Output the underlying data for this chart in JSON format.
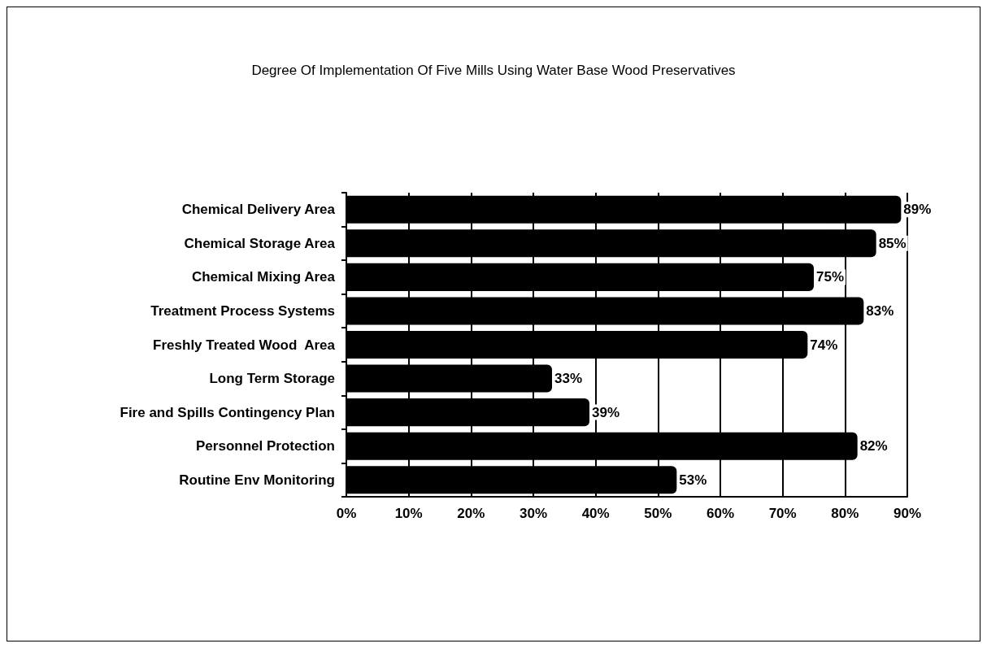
{
  "chart_data": {
    "type": "bar",
    "orientation": "horizontal",
    "title": "Degree Of Implementation Of Five Mills Using Water Base Wood Preservatives",
    "categories": [
      "Chemical Delivery Area",
      "Chemical Storage Area",
      "Chemical Mixing Area",
      "Treatment Process Systems",
      "Freshly Treated Wood  Area",
      "Long Term Storage",
      "Fire and Spills Contingency Plan",
      "Personnel Protection",
      "Routine Env Monitoring"
    ],
    "values": [
      89,
      85,
      75,
      83,
      74,
      33,
      39,
      82,
      53
    ],
    "value_labels": [
      "89%",
      "85%",
      "75%",
      "83%",
      "74%",
      "33%",
      "39%",
      "82%",
      "53%"
    ],
    "color": "#000000",
    "xlim": [
      0,
      90
    ],
    "xticks": [
      {
        "value": 0,
        "label": "0%"
      },
      {
        "value": 10,
        "label": "10%"
      },
      {
        "value": 20,
        "label": "20%"
      },
      {
        "value": 30,
        "label": "30%"
      },
      {
        "value": 40,
        "label": "40%"
      },
      {
        "value": 50,
        "label": "50%"
      },
      {
        "value": 60,
        "label": "60%"
      },
      {
        "value": 70,
        "label": "70%"
      },
      {
        "value": 80,
        "label": "80%"
      },
      {
        "value": 90,
        "label": "90%"
      }
    ],
    "grid": "x"
  }
}
